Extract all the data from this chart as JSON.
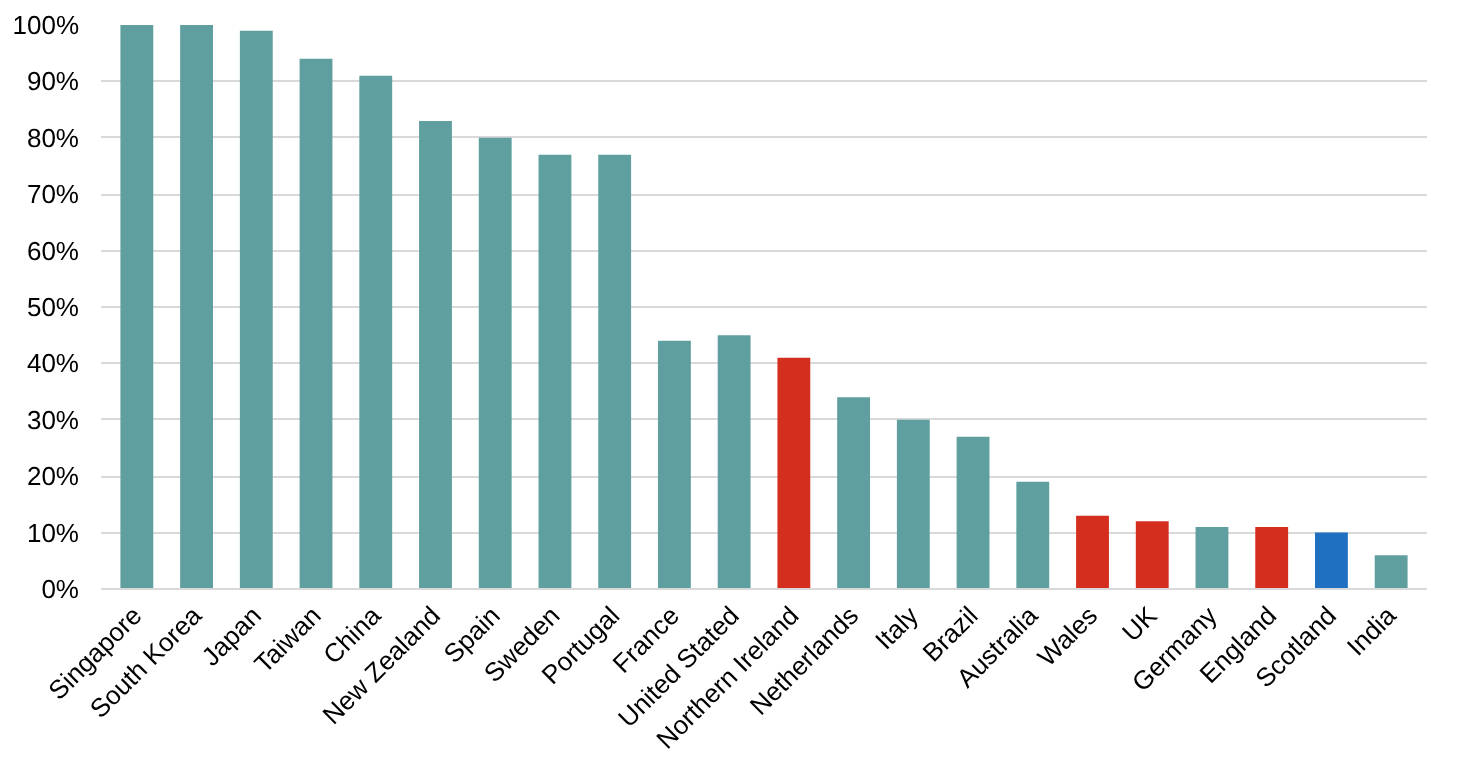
{
  "chart_data": {
    "type": "bar",
    "categories": [
      "Singapore",
      "South Korea",
      "Japan",
      "Taiwan",
      "China",
      "New Zealand",
      "Spain",
      "Sweden",
      "Portugal",
      "France",
      "United Stated",
      "Northern Ireland",
      "Netherlands",
      "Italy",
      "Brazil",
      "Australia",
      "Wales",
      "UK",
      "Germany",
      "England",
      "Scotland",
      "India"
    ],
    "values": [
      100,
      100,
      99,
      94,
      91,
      83,
      80,
      77,
      77,
      44,
      45,
      41,
      34,
      30,
      27,
      19,
      13,
      12,
      11,
      11,
      10,
      6
    ],
    "colors": [
      "#5f9f9f",
      "#5f9f9f",
      "#5f9f9f",
      "#5f9f9f",
      "#5f9f9f",
      "#5f9f9f",
      "#5f9f9f",
      "#5f9f9f",
      "#5f9f9f",
      "#5f9f9f",
      "#5f9f9f",
      "#d42e1e",
      "#5f9f9f",
      "#5f9f9f",
      "#5f9f9f",
      "#5f9f9f",
      "#d42e1e",
      "#d42e1e",
      "#5f9f9f",
      "#d42e1e",
      "#1f70c1",
      "#5f9f9f"
    ],
    "ylim": [
      0,
      100
    ],
    "yticks": [
      {
        "value": 0,
        "label": "0%"
      },
      {
        "value": 10,
        "label": "10%"
      },
      {
        "value": 20,
        "label": "20%"
      },
      {
        "value": 30,
        "label": "30%"
      },
      {
        "value": 40,
        "label": "40%"
      },
      {
        "value": 50,
        "label": "50%"
      },
      {
        "value": 60,
        "label": "60%"
      },
      {
        "value": 70,
        "label": "70%"
      },
      {
        "value": 80,
        "label": "80%"
      },
      {
        "value": 90,
        "label": "90%"
      },
      {
        "value": 100,
        "label": "100%"
      }
    ],
    "grid": "y"
  }
}
